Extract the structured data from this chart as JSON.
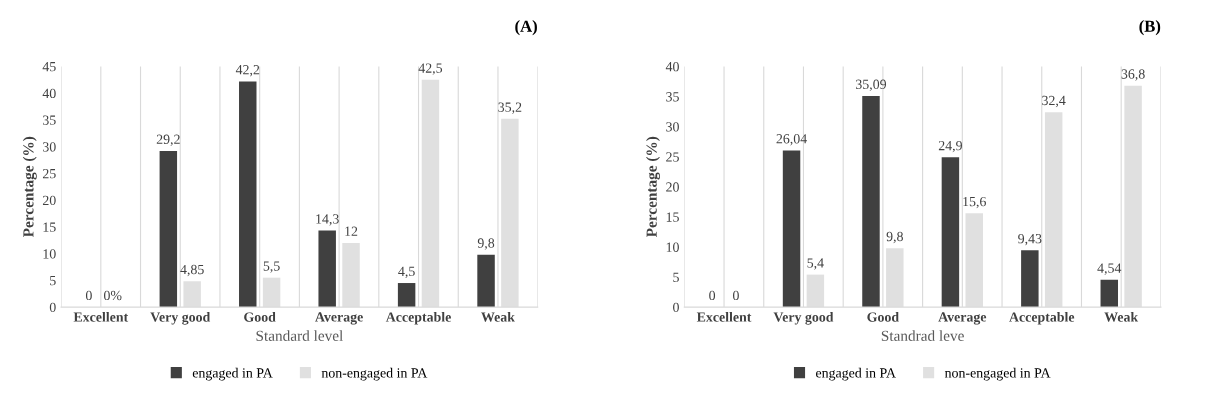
{
  "chart_data": [
    {
      "type": "bar",
      "title": "(A)",
      "xlabel": "Standard level",
      "ylabel": "Percentage (%)",
      "categories": [
        "Excellent",
        "Very good",
        "Good",
        "Average",
        "Acceptable",
        "Weak"
      ],
      "series": [
        {
          "name": "engaged in PA",
          "color": "#404040",
          "values": [
            0,
            29.2,
            42.2,
            14.3,
            4.5,
            9.8
          ],
          "value_labels": [
            "0",
            "29,2",
            "42,2",
            "14,3",
            "4,5",
            "9,8"
          ]
        },
        {
          "name": "non-engaged in PA",
          "color": "#e0e0e0",
          "values": [
            0,
            4.85,
            5.5,
            12,
            42.5,
            35.2
          ],
          "value_labels": [
            "0%",
            "4,85",
            "5,5",
            "12",
            "42,5",
            "35,2"
          ]
        }
      ],
      "ylim": [
        0,
        45
      ],
      "yticks": [
        0,
        5,
        10,
        15,
        20,
        25,
        30,
        35,
        40,
        45
      ],
      "grid": "x",
      "legend": "bottom"
    },
    {
      "type": "bar",
      "title": "(B)",
      "xlabel": "Standrad leve",
      "ylabel": "Percentage (%)",
      "categories": [
        "Excellent",
        "Very good",
        "Good",
        "Average",
        "Acceptable",
        "Weak"
      ],
      "series": [
        {
          "name": "engaged in PA",
          "color": "#404040",
          "values": [
            0,
            26.04,
            35.09,
            24.9,
            9.43,
            4.54
          ],
          "value_labels": [
            "0",
            "26,04",
            "35,09",
            "24,9",
            "9,43",
            "4,54"
          ]
        },
        {
          "name": "non-engaged in PA",
          "color": "#e0e0e0",
          "values": [
            0,
            5.4,
            9.8,
            15.6,
            32.4,
            36.8
          ],
          "value_labels": [
            "0",
            "5,4",
            "9,8",
            "15,6",
            "32,4",
            "36,8"
          ]
        }
      ],
      "ylim": [
        0,
        40
      ],
      "yticks": [
        0,
        5,
        10,
        15,
        20,
        25,
        30,
        35,
        40
      ],
      "grid": "x",
      "legend": "bottom"
    }
  ]
}
